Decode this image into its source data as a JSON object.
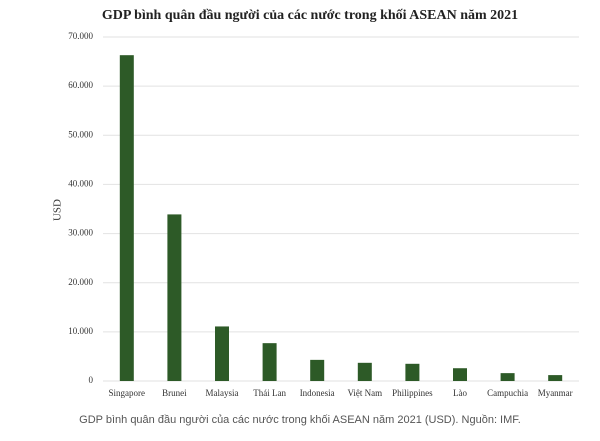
{
  "chart_data": {
    "type": "bar",
    "title": "GDP bình quân đầu người của các nước trong khối ASEAN năm 2021",
    "y_label": "USD",
    "caption": "GDP bình quân đầu người của các nước trong khối ASEAN năm 2021 (USD). Nguồn: IMF.",
    "categories": [
      "Singapore",
      "Brunei",
      "Malaysia",
      "Thái Lan",
      "Indonesia",
      "Việt Nam",
      "Philippines",
      "Lào",
      "Campuchia",
      "Myanmar"
    ],
    "values": [
      66300,
      33900,
      11100,
      7700,
      4300,
      3700,
      3500,
      2600,
      1600,
      1200
    ],
    "color": "#2d5a27",
    "ylim": [
      0,
      70000
    ],
    "yticks": [
      0,
      {
        "value": 10000,
        "label": "10.000"
      },
      {
        "value": 20000,
        "label": "20.000"
      },
      {
        "value": 30000,
        "label": "30.000"
      },
      {
        "value": 40000,
        "label": "40.000"
      },
      {
        "value": 50000,
        "label": "50.000"
      },
      {
        "value": 60000,
        "label": "60.000"
      },
      {
        "value": 70000,
        "label": "70.000"
      }
    ],
    "grid": true
  }
}
